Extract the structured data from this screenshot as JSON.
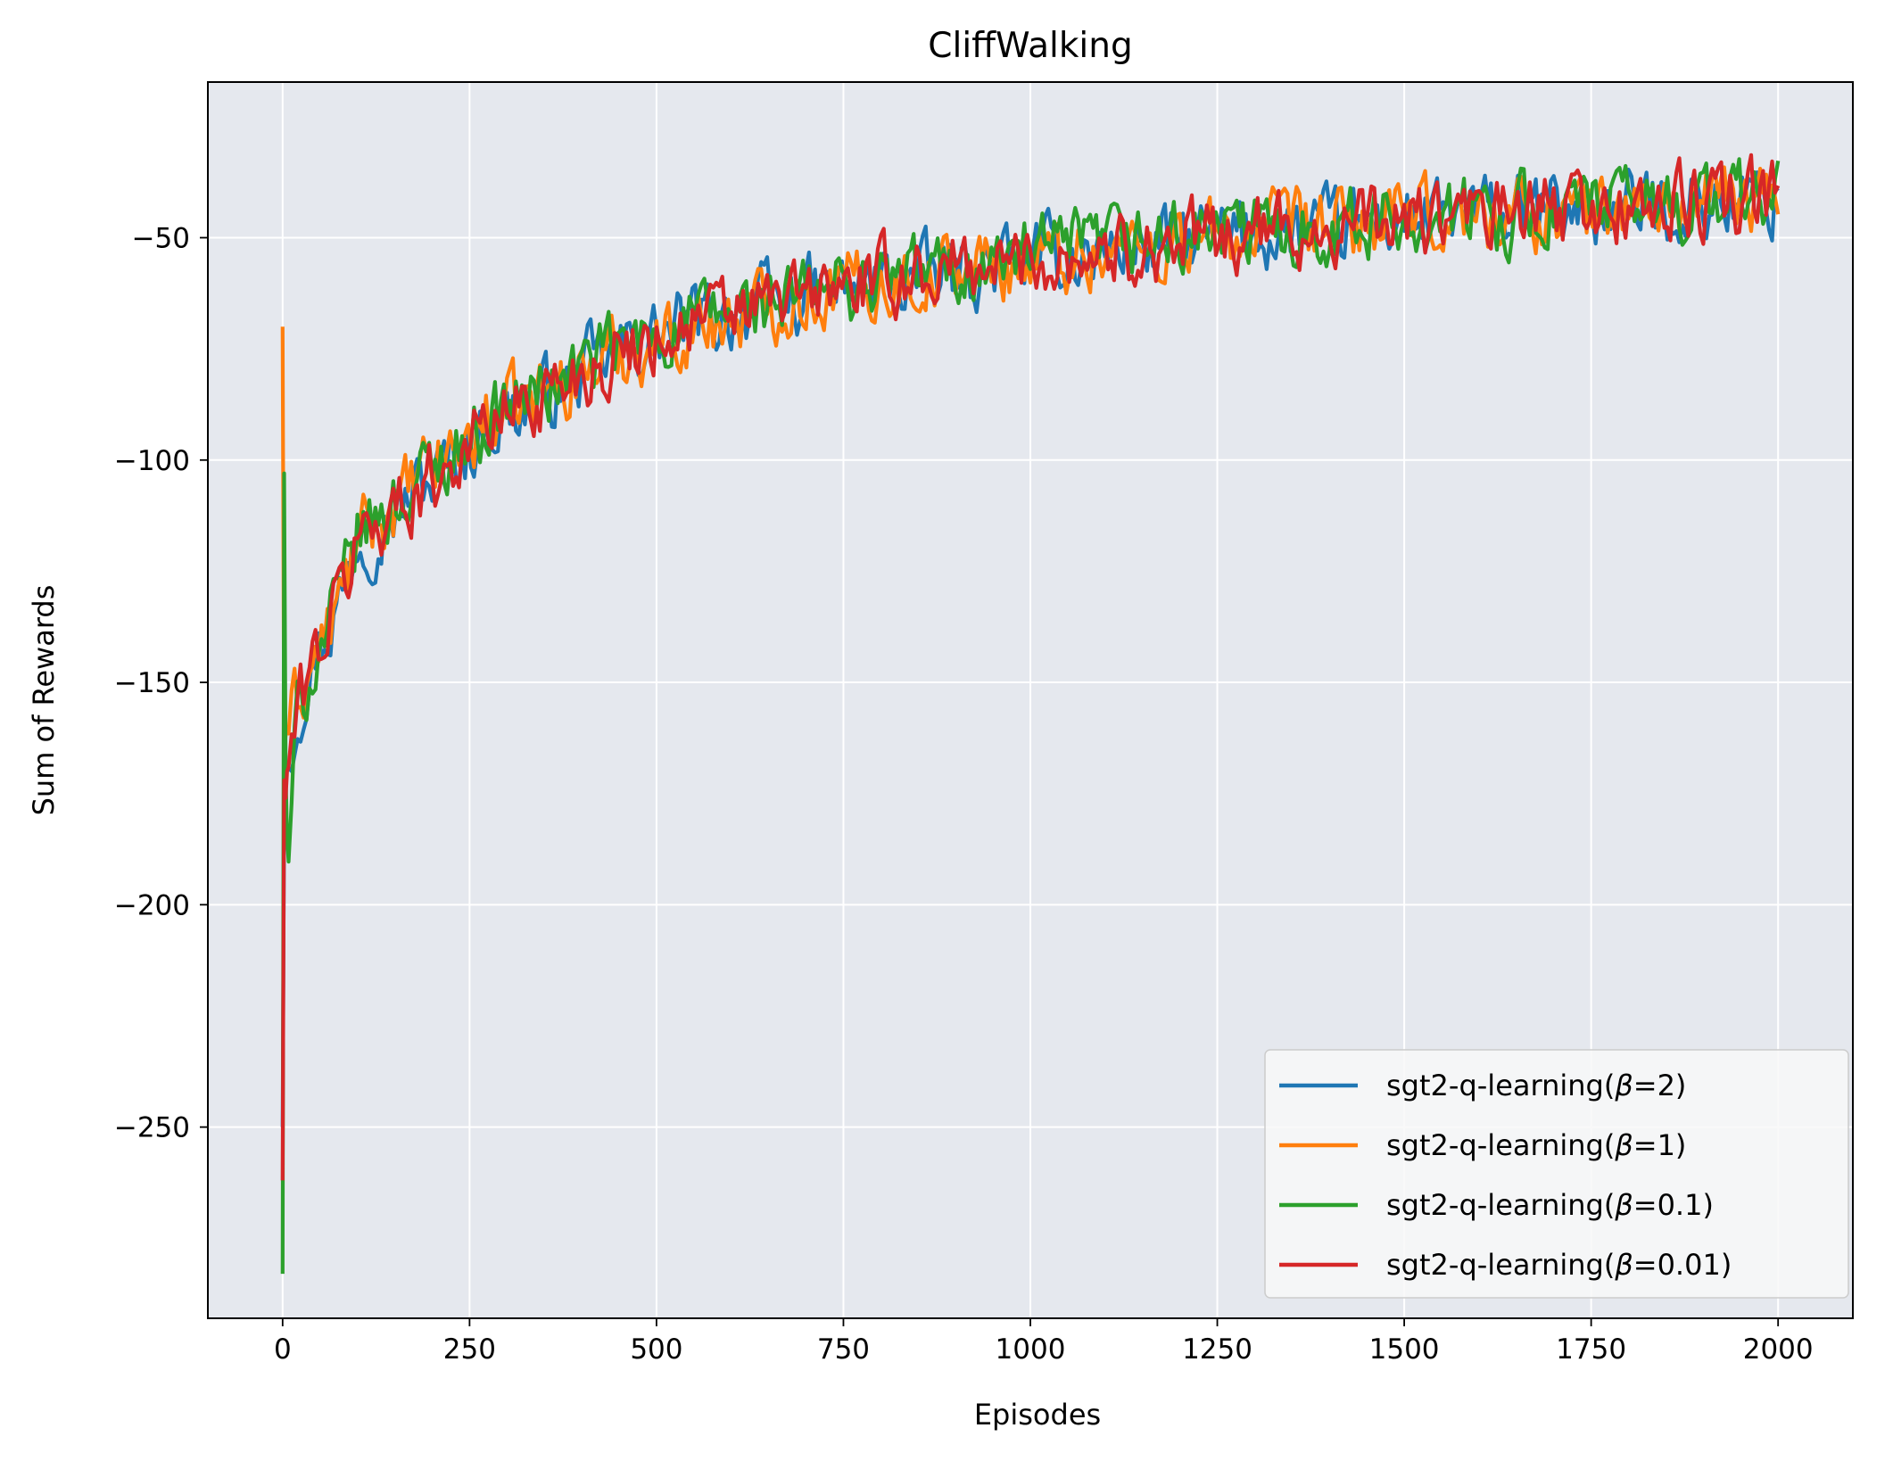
{
  "chart_data": {
    "type": "line",
    "title": "CliffWalking",
    "xlabel": "Episodes",
    "ylabel": "Sum of Rewards",
    "xlim": [
      -100,
      2100
    ],
    "ylim": [
      -293,
      -15
    ],
    "xticks": [
      0,
      250,
      500,
      750,
      1000,
      1250,
      1500,
      1750,
      2000
    ],
    "xtick_labels": [
      "0",
      "250",
      "500",
      "750",
      "1000",
      "1250",
      "1500",
      "1750",
      "2000"
    ],
    "yticks": [
      -250,
      -200,
      -150,
      -100,
      -50
    ],
    "ytick_labels": [
      "−250",
      "−200",
      "−150",
      "−100",
      "−50"
    ],
    "grid": true,
    "background": "#e5e8ee",
    "legend_position": "lower-right",
    "series": [
      {
        "name": "sgt2-q-learning(β=2)",
        "name_prefix": "sgt2-q-learning(",
        "name_beta": "β",
        "name_suffix": "=2)",
        "color": "#1f77b4",
        "x": [
          0,
          2,
          4,
          6,
          10,
          15,
          20,
          30,
          40,
          50,
          60,
          70,
          80,
          90,
          100,
          120,
          140,
          160,
          180,
          200,
          225,
          250,
          275,
          300,
          325,
          350,
          375,
          400,
          450,
          500,
          550,
          600,
          650,
          700,
          750,
          800,
          850,
          900,
          950,
          1000,
          1050,
          1100,
          1150,
          1200,
          1250,
          1300,
          1350,
          1400,
          1450,
          1500,
          1550,
          1600,
          1650,
          1700,
          1750,
          1800,
          1850,
          1900,
          1950,
          2000
        ],
        "y": [
          -250,
          -180,
          -172,
          -168,
          -164,
          -160,
          -156,
          -150,
          -145,
          -141,
          -138,
          -134,
          -129,
          -124,
          -117,
          -116,
          -112,
          -110,
          -106,
          -104,
          -100,
          -97,
          -92,
          -90,
          -88,
          -86,
          -83,
          -80,
          -76,
          -72,
          -69,
          -67,
          -65,
          -63,
          -62,
          -60,
          -59,
          -58,
          -56,
          -55,
          -54,
          -53,
          -52,
          -51,
          -50,
          -49,
          -49,
          -48,
          -47,
          -46,
          -46,
          -45,
          -45,
          -44,
          -44,
          -43,
          -43,
          -42,
          -42,
          -41
        ],
        "noise": 4.5
      },
      {
        "name": "sgt2-q-learning(β=1)",
        "name_prefix": "sgt2-q-learning(",
        "name_beta": "β",
        "name_suffix": "=1)",
        "color": "#ff7f0e",
        "x": [
          0,
          2,
          4,
          6,
          10,
          15,
          20,
          30,
          40,
          50,
          60,
          70,
          80,
          90,
          100,
          120,
          140,
          160,
          180,
          200,
          225,
          250,
          275,
          300,
          325,
          350,
          375,
          400,
          450,
          500,
          550,
          600,
          650,
          700,
          750,
          800,
          850,
          900,
          950,
          1000,
          1050,
          1100,
          1150,
          1200,
          1250,
          1300,
          1350,
          1400,
          1450,
          1500,
          1550,
          1600,
          1650,
          1700,
          1750,
          1800,
          1850,
          1900,
          1950,
          2000
        ],
        "y": [
          -70,
          -165,
          -162,
          -160,
          -158,
          -156,
          -154,
          -150,
          -146,
          -142,
          -139,
          -135,
          -130,
          -125,
          -118,
          -115,
          -111,
          -109,
          -105,
          -102,
          -98,
          -95,
          -91,
          -89,
          -87,
          -85,
          -82,
          -80,
          -76,
          -73,
          -70,
          -68,
          -65,
          -63,
          -61,
          -60,
          -59,
          -57,
          -56,
          -55,
          -54,
          -53,
          -52,
          -51,
          -50,
          -49,
          -48,
          -48,
          -47,
          -46,
          -46,
          -45,
          -45,
          -44,
          -44,
          -43,
          -43,
          -42,
          -42,
          -41
        ],
        "noise": 4.5
      },
      {
        "name": "sgt2-q-learning(β=0.1)",
        "name_prefix": "sgt2-q-learning(",
        "name_beta": "β",
        "name_suffix": "=0.1)",
        "color": "#2ca02c",
        "x": [
          0,
          2,
          4,
          6,
          10,
          15,
          20,
          30,
          40,
          50,
          60,
          70,
          80,
          90,
          100,
          120,
          140,
          160,
          180,
          200,
          225,
          250,
          275,
          300,
          325,
          350,
          375,
          400,
          450,
          500,
          550,
          600,
          650,
          700,
          750,
          800,
          850,
          900,
          950,
          1000,
          1050,
          1100,
          1150,
          1200,
          1250,
          1300,
          1350,
          1400,
          1450,
          1500,
          1550,
          1600,
          1650,
          1700,
          1750,
          1800,
          1850,
          1900,
          1950,
          2000
        ],
        "y": [
          -283,
          -103,
          -170,
          -185,
          -192,
          -165,
          -158,
          -152,
          -146,
          -142,
          -138,
          -134,
          -129,
          -124,
          -117,
          -114,
          -111,
          -108,
          -105,
          -102,
          -98,
          -95,
          -91,
          -88,
          -86,
          -84,
          -82,
          -79,
          -75,
          -72,
          -69,
          -67,
          -65,
          -63,
          -61,
          -60,
          -58,
          -57,
          -56,
          -54,
          -53,
          -52,
          -51,
          -50,
          -49,
          -49,
          -48,
          -47,
          -47,
          -46,
          -45,
          -45,
          -44,
          -44,
          -43,
          -43,
          -42,
          -42,
          -41,
          -41
        ],
        "noise": 4.5
      },
      {
        "name": "sgt2-q-learning(β=0.01)",
        "name_prefix": "sgt2-q-learning(",
        "name_beta": "β",
        "name_suffix": "=0.01)",
        "color": "#d62728",
        "x": [
          0,
          2,
          4,
          6,
          10,
          15,
          20,
          30,
          40,
          50,
          60,
          70,
          80,
          90,
          100,
          120,
          140,
          160,
          180,
          200,
          225,
          250,
          275,
          300,
          325,
          350,
          375,
          400,
          450,
          500,
          550,
          600,
          650,
          700,
          750,
          800,
          850,
          900,
          950,
          1000,
          1050,
          1100,
          1150,
          1200,
          1250,
          1300,
          1350,
          1400,
          1450,
          1500,
          1550,
          1600,
          1650,
          1700,
          1750,
          1800,
          1850,
          1900,
          1950,
          2000
        ],
        "y": [
          -262,
          -172,
          -176,
          -170,
          -166,
          -162,
          -157,
          -150,
          -145,
          -141,
          -138,
          -134,
          -129,
          -124,
          -117,
          -115,
          -112,
          -110,
          -106,
          -104,
          -100,
          -96,
          -92,
          -89,
          -87,
          -85,
          -82,
          -80,
          -76,
          -72,
          -69,
          -67,
          -65,
          -63,
          -61,
          -60,
          -58,
          -57,
          -56,
          -55,
          -54,
          -53,
          -52,
          -51,
          -50,
          -49,
          -48,
          -48,
          -47,
          -46,
          -46,
          -45,
          -45,
          -44,
          -44,
          -43,
          -43,
          -42,
          -42,
          -41
        ],
        "noise": 4.5
      }
    ]
  }
}
